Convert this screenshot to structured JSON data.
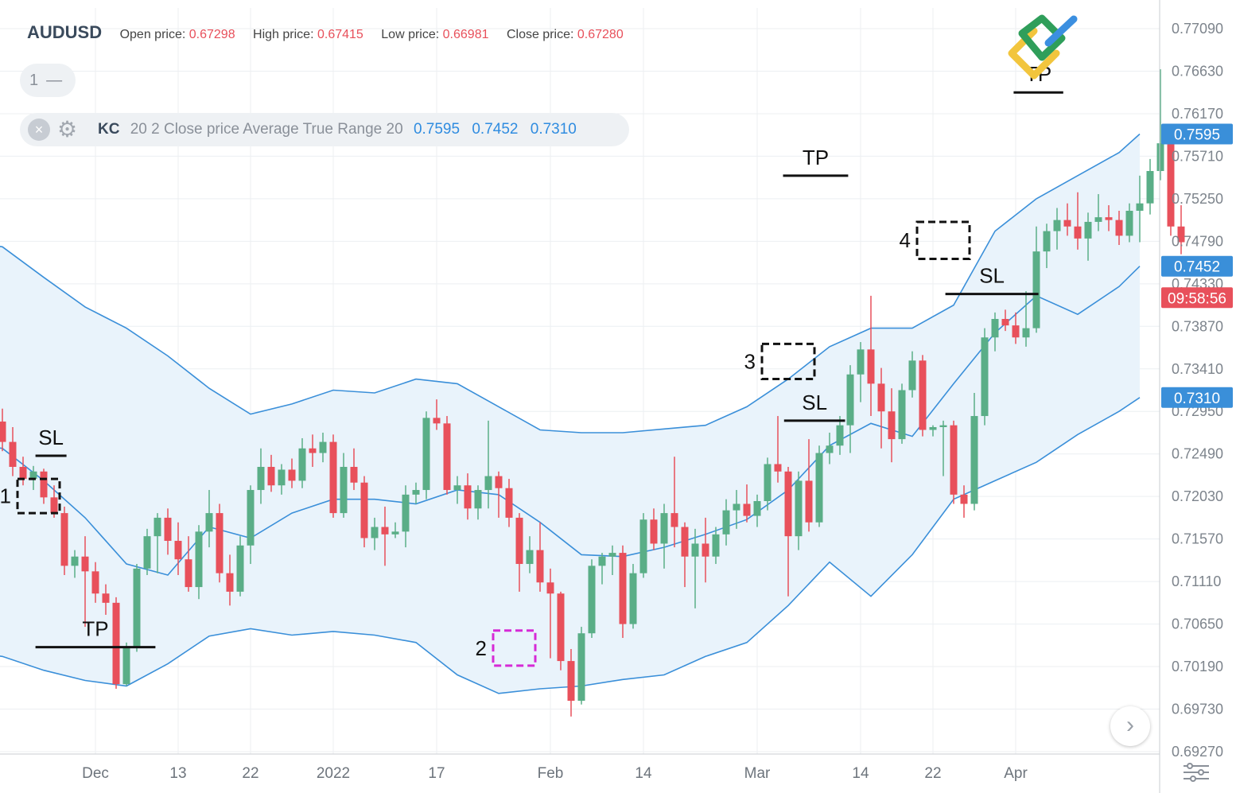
{
  "header": {
    "symbol": "AUDUSD",
    "open_label": "Open price:",
    "open_value": "0.67298",
    "high_label": "High price:",
    "high_value": "0.67415",
    "low_label": "Low price:",
    "low_value": "0.66981",
    "close_label": "Close price:",
    "close_value": "0.67280"
  },
  "interval_pill": {
    "value": "1",
    "dash": "—"
  },
  "indicator": {
    "name": "KC",
    "params": "20 2 Close price Average True Range 20",
    "upper": "0.7595",
    "middle": "0.7452",
    "lower": "0.7310"
  },
  "icons": {
    "remove": "close-circle-icon",
    "settings": "gear-icon",
    "next": "chevron-right-icon",
    "panel": "sliders-icon",
    "logo": "brand-logo-icon"
  },
  "colors": {
    "up": "#5aae87",
    "down": "#e8505b",
    "band": "#3a8fd9",
    "fill": "#e9f3fb",
    "label_blue": "#3a8fd9",
    "label_red": "#e8505b",
    "box_black": "#111111",
    "box_magenta": "#d62ad6"
  },
  "chart_data": {
    "type": "candlestick",
    "ylim": [
      0.6927,
      0.7709
    ],
    "y_ticks": [
      "0.77090",
      "0.76630",
      "0.76170",
      "0.75710",
      "0.75250",
      "0.74790",
      "0.74330",
      "0.73870",
      "0.73410",
      "0.72950",
      "0.72490",
      "0.72030",
      "0.71570",
      "0.71110",
      "0.70650",
      "0.70190",
      "0.69730",
      "0.69270"
    ],
    "x_ticks": [
      {
        "label": "Dec",
        "index": 9
      },
      {
        "label": "13",
        "index": 17
      },
      {
        "label": "22",
        "index": 24
      },
      {
        "label": "2022",
        "index": 32
      },
      {
        "label": "17",
        "index": 42
      },
      {
        "label": "Feb",
        "index": 53
      },
      {
        "label": "14",
        "index": 62
      },
      {
        "label": "Mar",
        "index": 73
      },
      {
        "label": "14",
        "index": 83
      },
      {
        "label": "22",
        "index": 90
      },
      {
        "label": "Apr",
        "index": 98
      }
    ],
    "candles": [
      {
        "o": 0.7284,
        "h": 0.7298,
        "l": 0.7252,
        "c": 0.7262
      },
      {
        "o": 0.7262,
        "h": 0.7278,
        "l": 0.7225,
        "c": 0.7235
      },
      {
        "o": 0.7235,
        "h": 0.7246,
        "l": 0.7215,
        "c": 0.7222
      },
      {
        "o": 0.7222,
        "h": 0.7236,
        "l": 0.721,
        "c": 0.723
      },
      {
        "o": 0.723,
        "h": 0.7233,
        "l": 0.7195,
        "c": 0.7202
      },
      {
        "o": 0.7202,
        "h": 0.7215,
        "l": 0.718,
        "c": 0.7185
      },
      {
        "o": 0.7185,
        "h": 0.7192,
        "l": 0.7118,
        "c": 0.7128
      },
      {
        "o": 0.7128,
        "h": 0.7145,
        "l": 0.7115,
        "c": 0.7138
      },
      {
        "o": 0.7138,
        "h": 0.716,
        "l": 0.7062,
        "c": 0.7122
      },
      {
        "o": 0.7122,
        "h": 0.7132,
        "l": 0.7088,
        "c": 0.7098
      },
      {
        "o": 0.7098,
        "h": 0.7108,
        "l": 0.7075,
        "c": 0.7088
      },
      {
        "o": 0.7088,
        "h": 0.7094,
        "l": 0.6995,
        "c": 0.7
      },
      {
        "o": 0.7,
        "h": 0.7045,
        "l": 0.6998,
        "c": 0.704
      },
      {
        "o": 0.704,
        "h": 0.713,
        "l": 0.7035,
        "c": 0.7125
      },
      {
        "o": 0.7125,
        "h": 0.7168,
        "l": 0.7118,
        "c": 0.716
      },
      {
        "o": 0.716,
        "h": 0.7185,
        "l": 0.712,
        "c": 0.718
      },
      {
        "o": 0.718,
        "h": 0.719,
        "l": 0.714,
        "c": 0.7155
      },
      {
        "o": 0.7155,
        "h": 0.7175,
        "l": 0.7118,
        "c": 0.7135
      },
      {
        "o": 0.7135,
        "h": 0.716,
        "l": 0.71,
        "c": 0.7105
      },
      {
        "o": 0.7105,
        "h": 0.7172,
        "l": 0.7092,
        "c": 0.7165
      },
      {
        "o": 0.7165,
        "h": 0.721,
        "l": 0.7148,
        "c": 0.7185
      },
      {
        "o": 0.7185,
        "h": 0.7195,
        "l": 0.711,
        "c": 0.712
      },
      {
        "o": 0.712,
        "h": 0.714,
        "l": 0.7085,
        "c": 0.71
      },
      {
        "o": 0.71,
        "h": 0.716,
        "l": 0.7095,
        "c": 0.715
      },
      {
        "o": 0.715,
        "h": 0.7215,
        "l": 0.713,
        "c": 0.721
      },
      {
        "o": 0.721,
        "h": 0.7255,
        "l": 0.7195,
        "c": 0.7235
      },
      {
        "o": 0.7235,
        "h": 0.7248,
        "l": 0.7208,
        "c": 0.7215
      },
      {
        "o": 0.7215,
        "h": 0.7238,
        "l": 0.7205,
        "c": 0.7232
      },
      {
        "o": 0.7232,
        "h": 0.7244,
        "l": 0.7212,
        "c": 0.722
      },
      {
        "o": 0.722,
        "h": 0.7266,
        "l": 0.7212,
        "c": 0.7255
      },
      {
        "o": 0.7255,
        "h": 0.727,
        "l": 0.7235,
        "c": 0.725
      },
      {
        "o": 0.725,
        "h": 0.7272,
        "l": 0.724,
        "c": 0.7262
      },
      {
        "o": 0.7262,
        "h": 0.727,
        "l": 0.718,
        "c": 0.7185
      },
      {
        "o": 0.7185,
        "h": 0.725,
        "l": 0.718,
        "c": 0.7235
      },
      {
        "o": 0.7235,
        "h": 0.7255,
        "l": 0.721,
        "c": 0.7218
      },
      {
        "o": 0.7218,
        "h": 0.7225,
        "l": 0.7148,
        "c": 0.7158
      },
      {
        "o": 0.7158,
        "h": 0.718,
        "l": 0.7145,
        "c": 0.717
      },
      {
        "o": 0.717,
        "h": 0.7192,
        "l": 0.7128,
        "c": 0.7162
      },
      {
        "o": 0.7162,
        "h": 0.7175,
        "l": 0.7158,
        "c": 0.7165
      },
      {
        "o": 0.7165,
        "h": 0.7215,
        "l": 0.7148,
        "c": 0.7205
      },
      {
        "o": 0.7205,
        "h": 0.7218,
        "l": 0.7195,
        "c": 0.721
      },
      {
        "o": 0.721,
        "h": 0.7295,
        "l": 0.72,
        "c": 0.7288
      },
      {
        "o": 0.7288,
        "h": 0.7308,
        "l": 0.7275,
        "c": 0.7282
      },
      {
        "o": 0.7282,
        "h": 0.729,
        "l": 0.7205,
        "c": 0.721
      },
      {
        "o": 0.721,
        "h": 0.7225,
        "l": 0.7195,
        "c": 0.7215
      },
      {
        "o": 0.7215,
        "h": 0.7228,
        "l": 0.7178,
        "c": 0.719
      },
      {
        "o": 0.719,
        "h": 0.7215,
        "l": 0.7178,
        "c": 0.721
      },
      {
        "o": 0.721,
        "h": 0.7285,
        "l": 0.719,
        "c": 0.7225
      },
      {
        "o": 0.7225,
        "h": 0.723,
        "l": 0.718,
        "c": 0.7212
      },
      {
        "o": 0.7212,
        "h": 0.7222,
        "l": 0.717,
        "c": 0.718
      },
      {
        "o": 0.718,
        "h": 0.7185,
        "l": 0.71,
        "c": 0.713
      },
      {
        "o": 0.713,
        "h": 0.716,
        "l": 0.712,
        "c": 0.7145
      },
      {
        "o": 0.7145,
        "h": 0.7175,
        "l": 0.71,
        "c": 0.711
      },
      {
        "o": 0.711,
        "h": 0.7125,
        "l": 0.7028,
        "c": 0.7098
      },
      {
        "o": 0.7098,
        "h": 0.71,
        "l": 0.7015,
        "c": 0.7025
      },
      {
        "o": 0.7025,
        "h": 0.7038,
        "l": 0.6965,
        "c": 0.6982
      },
      {
        "o": 0.6982,
        "h": 0.7062,
        "l": 0.6978,
        "c": 0.7055
      },
      {
        "o": 0.7055,
        "h": 0.7135,
        "l": 0.705,
        "c": 0.7128
      },
      {
        "o": 0.7128,
        "h": 0.7142,
        "l": 0.7108,
        "c": 0.7138
      },
      {
        "o": 0.7138,
        "h": 0.715,
        "l": 0.7118,
        "c": 0.7142
      },
      {
        "o": 0.7142,
        "h": 0.715,
        "l": 0.705,
        "c": 0.7065
      },
      {
        "o": 0.7065,
        "h": 0.713,
        "l": 0.706,
        "c": 0.712
      },
      {
        "o": 0.712,
        "h": 0.7185,
        "l": 0.7115,
        "c": 0.7178
      },
      {
        "o": 0.7178,
        "h": 0.719,
        "l": 0.7145,
        "c": 0.7152
      },
      {
        "o": 0.7152,
        "h": 0.7195,
        "l": 0.7125,
        "c": 0.7185
      },
      {
        "o": 0.7185,
        "h": 0.7246,
        "l": 0.7148,
        "c": 0.717
      },
      {
        "o": 0.717,
        "h": 0.7175,
        "l": 0.7105,
        "c": 0.7138
      },
      {
        "o": 0.7138,
        "h": 0.7168,
        "l": 0.7082,
        "c": 0.7152
      },
      {
        "o": 0.7152,
        "h": 0.718,
        "l": 0.711,
        "c": 0.7138
      },
      {
        "o": 0.7138,
        "h": 0.717,
        "l": 0.713,
        "c": 0.7162
      },
      {
        "o": 0.7162,
        "h": 0.72,
        "l": 0.715,
        "c": 0.7188
      },
      {
        "o": 0.7188,
        "h": 0.721,
        "l": 0.7168,
        "c": 0.7195
      },
      {
        "o": 0.7195,
        "h": 0.7216,
        "l": 0.7175,
        "c": 0.7182
      },
      {
        "o": 0.7182,
        "h": 0.7205,
        "l": 0.717,
        "c": 0.7198
      },
      {
        "o": 0.7198,
        "h": 0.7245,
        "l": 0.7188,
        "c": 0.7238
      },
      {
        "o": 0.7238,
        "h": 0.729,
        "l": 0.7218,
        "c": 0.723
      },
      {
        "o": 0.723,
        "h": 0.7235,
        "l": 0.7095,
        "c": 0.716
      },
      {
        "o": 0.716,
        "h": 0.723,
        "l": 0.7145,
        "c": 0.722
      },
      {
        "o": 0.722,
        "h": 0.7265,
        "l": 0.7165,
        "c": 0.7175
      },
      {
        "o": 0.7175,
        "h": 0.7258,
        "l": 0.717,
        "c": 0.725
      },
      {
        "o": 0.725,
        "h": 0.7272,
        "l": 0.7238,
        "c": 0.7258
      },
      {
        "o": 0.7258,
        "h": 0.729,
        "l": 0.7248,
        "c": 0.728
      },
      {
        "o": 0.728,
        "h": 0.7345,
        "l": 0.725,
        "c": 0.7335
      },
      {
        "o": 0.7335,
        "h": 0.737,
        "l": 0.7305,
        "c": 0.7362
      },
      {
        "o": 0.7362,
        "h": 0.742,
        "l": 0.729,
        "c": 0.7325
      },
      {
        "o": 0.7325,
        "h": 0.7342,
        "l": 0.7255,
        "c": 0.7295
      },
      {
        "o": 0.7295,
        "h": 0.732,
        "l": 0.724,
        "c": 0.7265
      },
      {
        "o": 0.7265,
        "h": 0.7325,
        "l": 0.726,
        "c": 0.7318
      },
      {
        "o": 0.7318,
        "h": 0.736,
        "l": 0.731,
        "c": 0.735
      },
      {
        "o": 0.735,
        "h": 0.7356,
        "l": 0.7268,
        "c": 0.7275
      },
      {
        "o": 0.7275,
        "h": 0.728,
        "l": 0.7268,
        "c": 0.7278
      },
      {
        "o": 0.7278,
        "h": 0.7285,
        "l": 0.7225,
        "c": 0.728
      },
      {
        "o": 0.728,
        "h": 0.7285,
        "l": 0.7195,
        "c": 0.7205
      },
      {
        "o": 0.7205,
        "h": 0.7215,
        "l": 0.718,
        "c": 0.7195
      },
      {
        "o": 0.7195,
        "h": 0.7315,
        "l": 0.7188,
        "c": 0.729
      },
      {
        "o": 0.729,
        "h": 0.7385,
        "l": 0.728,
        "c": 0.7375
      },
      {
        "o": 0.7375,
        "h": 0.7402,
        "l": 0.736,
        "c": 0.7395
      },
      {
        "o": 0.7395,
        "h": 0.7405,
        "l": 0.7382,
        "c": 0.7388
      },
      {
        "o": 0.7388,
        "h": 0.7402,
        "l": 0.7368,
        "c": 0.7375
      },
      {
        "o": 0.7375,
        "h": 0.7425,
        "l": 0.7365,
        "c": 0.7385
      },
      {
        "o": 0.7385,
        "h": 0.7495,
        "l": 0.738,
        "c": 0.7468
      },
      {
        "o": 0.7468,
        "h": 0.7498,
        "l": 0.745,
        "c": 0.749
      },
      {
        "o": 0.749,
        "h": 0.7515,
        "l": 0.747,
        "c": 0.7502
      },
      {
        "o": 0.7502,
        "h": 0.752,
        "l": 0.7485,
        "c": 0.7495
      },
      {
        "o": 0.7495,
        "h": 0.7532,
        "l": 0.747,
        "c": 0.7482
      },
      {
        "o": 0.7482,
        "h": 0.751,
        "l": 0.7458,
        "c": 0.75
      },
      {
        "o": 0.75,
        "h": 0.753,
        "l": 0.749,
        "c": 0.7505
      },
      {
        "o": 0.7505,
        "h": 0.7518,
        "l": 0.749,
        "c": 0.7502
      },
      {
        "o": 0.7502,
        "h": 0.7512,
        "l": 0.7475,
        "c": 0.7485
      },
      {
        "o": 0.7485,
        "h": 0.752,
        "l": 0.7478,
        "c": 0.7512
      },
      {
        "o": 0.7512,
        "h": 0.755,
        "l": 0.7478,
        "c": 0.752
      },
      {
        "o": 0.752,
        "h": 0.7568,
        "l": 0.7508,
        "c": 0.7555
      },
      {
        "o": 0.7555,
        "h": 0.7665,
        "l": 0.7545,
        "c": 0.7585
      },
      {
        "o": 0.7585,
        "h": 0.759,
        "l": 0.7485,
        "c": 0.7495
      },
      {
        "o": 0.7495,
        "h": 0.7518,
        "l": 0.7465,
        "c": 0.7478
      }
    ],
    "channel": {
      "upper": [
        [
          0,
          0.7473
        ],
        [
          4,
          0.744
        ],
        [
          8,
          0.7408
        ],
        [
          12,
          0.7385
        ],
        [
          16,
          0.7355
        ],
        [
          20,
          0.732
        ],
        [
          24,
          0.7292
        ],
        [
          28,
          0.7303
        ],
        [
          32,
          0.7318
        ],
        [
          36,
          0.7315
        ],
        [
          40,
          0.733
        ],
        [
          44,
          0.7325
        ],
        [
          48,
          0.73
        ],
        [
          52,
          0.7275
        ],
        [
          56,
          0.7272
        ],
        [
          60,
          0.7272
        ],
        [
          64,
          0.7276
        ],
        [
          68,
          0.728
        ],
        [
          72,
          0.73
        ],
        [
          76,
          0.733
        ],
        [
          80,
          0.7365
        ],
        [
          84,
          0.7385
        ],
        [
          88,
          0.7385
        ],
        [
          92,
          0.741
        ],
        [
          96,
          0.749
        ],
        [
          100,
          0.7525
        ],
        [
          104,
          0.755
        ],
        [
          108,
          0.7575
        ],
        [
          110,
          0.7595
        ]
      ],
      "middle": [
        [
          0,
          0.7255
        ],
        [
          4,
          0.722
        ],
        [
          8,
          0.718
        ],
        [
          12,
          0.713
        ],
        [
          16,
          0.7118
        ],
        [
          20,
          0.717
        ],
        [
          24,
          0.7158
        ],
        [
          28,
          0.7185
        ],
        [
          32,
          0.72
        ],
        [
          36,
          0.72
        ],
        [
          40,
          0.7195
        ],
        [
          44,
          0.721
        ],
        [
          48,
          0.7205
        ],
        [
          52,
          0.7175
        ],
        [
          56,
          0.714
        ],
        [
          60,
          0.7138
        ],
        [
          64,
          0.7148
        ],
        [
          68,
          0.7162
        ],
        [
          72,
          0.7178
        ],
        [
          76,
          0.721
        ],
        [
          80,
          0.7258
        ],
        [
          84,
          0.7282
        ],
        [
          88,
          0.7268
        ],
        [
          92,
          0.7325
        ],
        [
          96,
          0.738
        ],
        [
          100,
          0.742
        ],
        [
          104,
          0.74
        ],
        [
          108,
          0.743
        ],
        [
          110,
          0.7452
        ]
      ],
      "lower": [
        [
          0,
          0.703
        ],
        [
          4,
          0.7015
        ],
        [
          8,
          0.7004
        ],
        [
          12,
          0.6998
        ],
        [
          16,
          0.7022
        ],
        [
          20,
          0.7052
        ],
        [
          24,
          0.706
        ],
        [
          28,
          0.7053
        ],
        [
          32,
          0.7057
        ],
        [
          36,
          0.7053
        ],
        [
          40,
          0.7045
        ],
        [
          44,
          0.701
        ],
        [
          48,
          0.699
        ],
        [
          52,
          0.6995
        ],
        [
          56,
          0.6998
        ],
        [
          60,
          0.7005
        ],
        [
          64,
          0.701
        ],
        [
          68,
          0.703
        ],
        [
          72,
          0.7045
        ],
        [
          76,
          0.7085
        ],
        [
          80,
          0.7132
        ],
        [
          84,
          0.7095
        ],
        [
          88,
          0.714
        ],
        [
          92,
          0.72
        ],
        [
          96,
          0.722
        ],
        [
          100,
          0.724
        ],
        [
          104,
          0.727
        ],
        [
          108,
          0.7295
        ],
        [
          110,
          0.731
        ]
      ]
    },
    "axis_labels": [
      {
        "text": "0.7595",
        "value": 0.7595,
        "style": "blue"
      },
      {
        "text": "0.7452",
        "value": 0.7452,
        "style": "blue"
      },
      {
        "text": "09:58:56",
        "value": 0.7418,
        "style": "red"
      },
      {
        "text": "0.7310",
        "value": 0.731,
        "style": "blue"
      }
    ],
    "annotations": {
      "levels": [
        {
          "label": "SL",
          "x1": 3.2,
          "x2": 6.2,
          "y": 0.7247
        },
        {
          "label": "TP",
          "x1": 3.2,
          "x2": 14.8,
          "y": 0.704
        },
        {
          "label": "TP",
          "x1": 75.5,
          "x2": 81.8,
          "y": 0.755
        },
        {
          "label": "SL",
          "x1": 75.6,
          "x2": 81.5,
          "y": 0.7285
        },
        {
          "label": "SL",
          "x1": 91.2,
          "x2": 100.2,
          "y": 0.7422
        },
        {
          "label": "TP",
          "x1": 97.8,
          "x2": 102.6,
          "y": 0.764
        }
      ],
      "boxes": [
        {
          "label": "1",
          "i1": 2,
          "i2": 5,
          "ylo": 0.7185,
          "yhi": 0.7222,
          "style": "black"
        },
        {
          "label": "2",
          "i1": 48,
          "i2": 51,
          "ylo": 0.702,
          "yhi": 0.7058,
          "style": "magenta"
        },
        {
          "label": "3",
          "i1": 74,
          "i2": 78,
          "ylo": 0.733,
          "yhi": 0.7368,
          "style": "black"
        },
        {
          "label": "4",
          "i1": 89,
          "i2": 93,
          "ylo": 0.746,
          "yhi": 0.75,
          "style": "black"
        }
      ]
    }
  }
}
